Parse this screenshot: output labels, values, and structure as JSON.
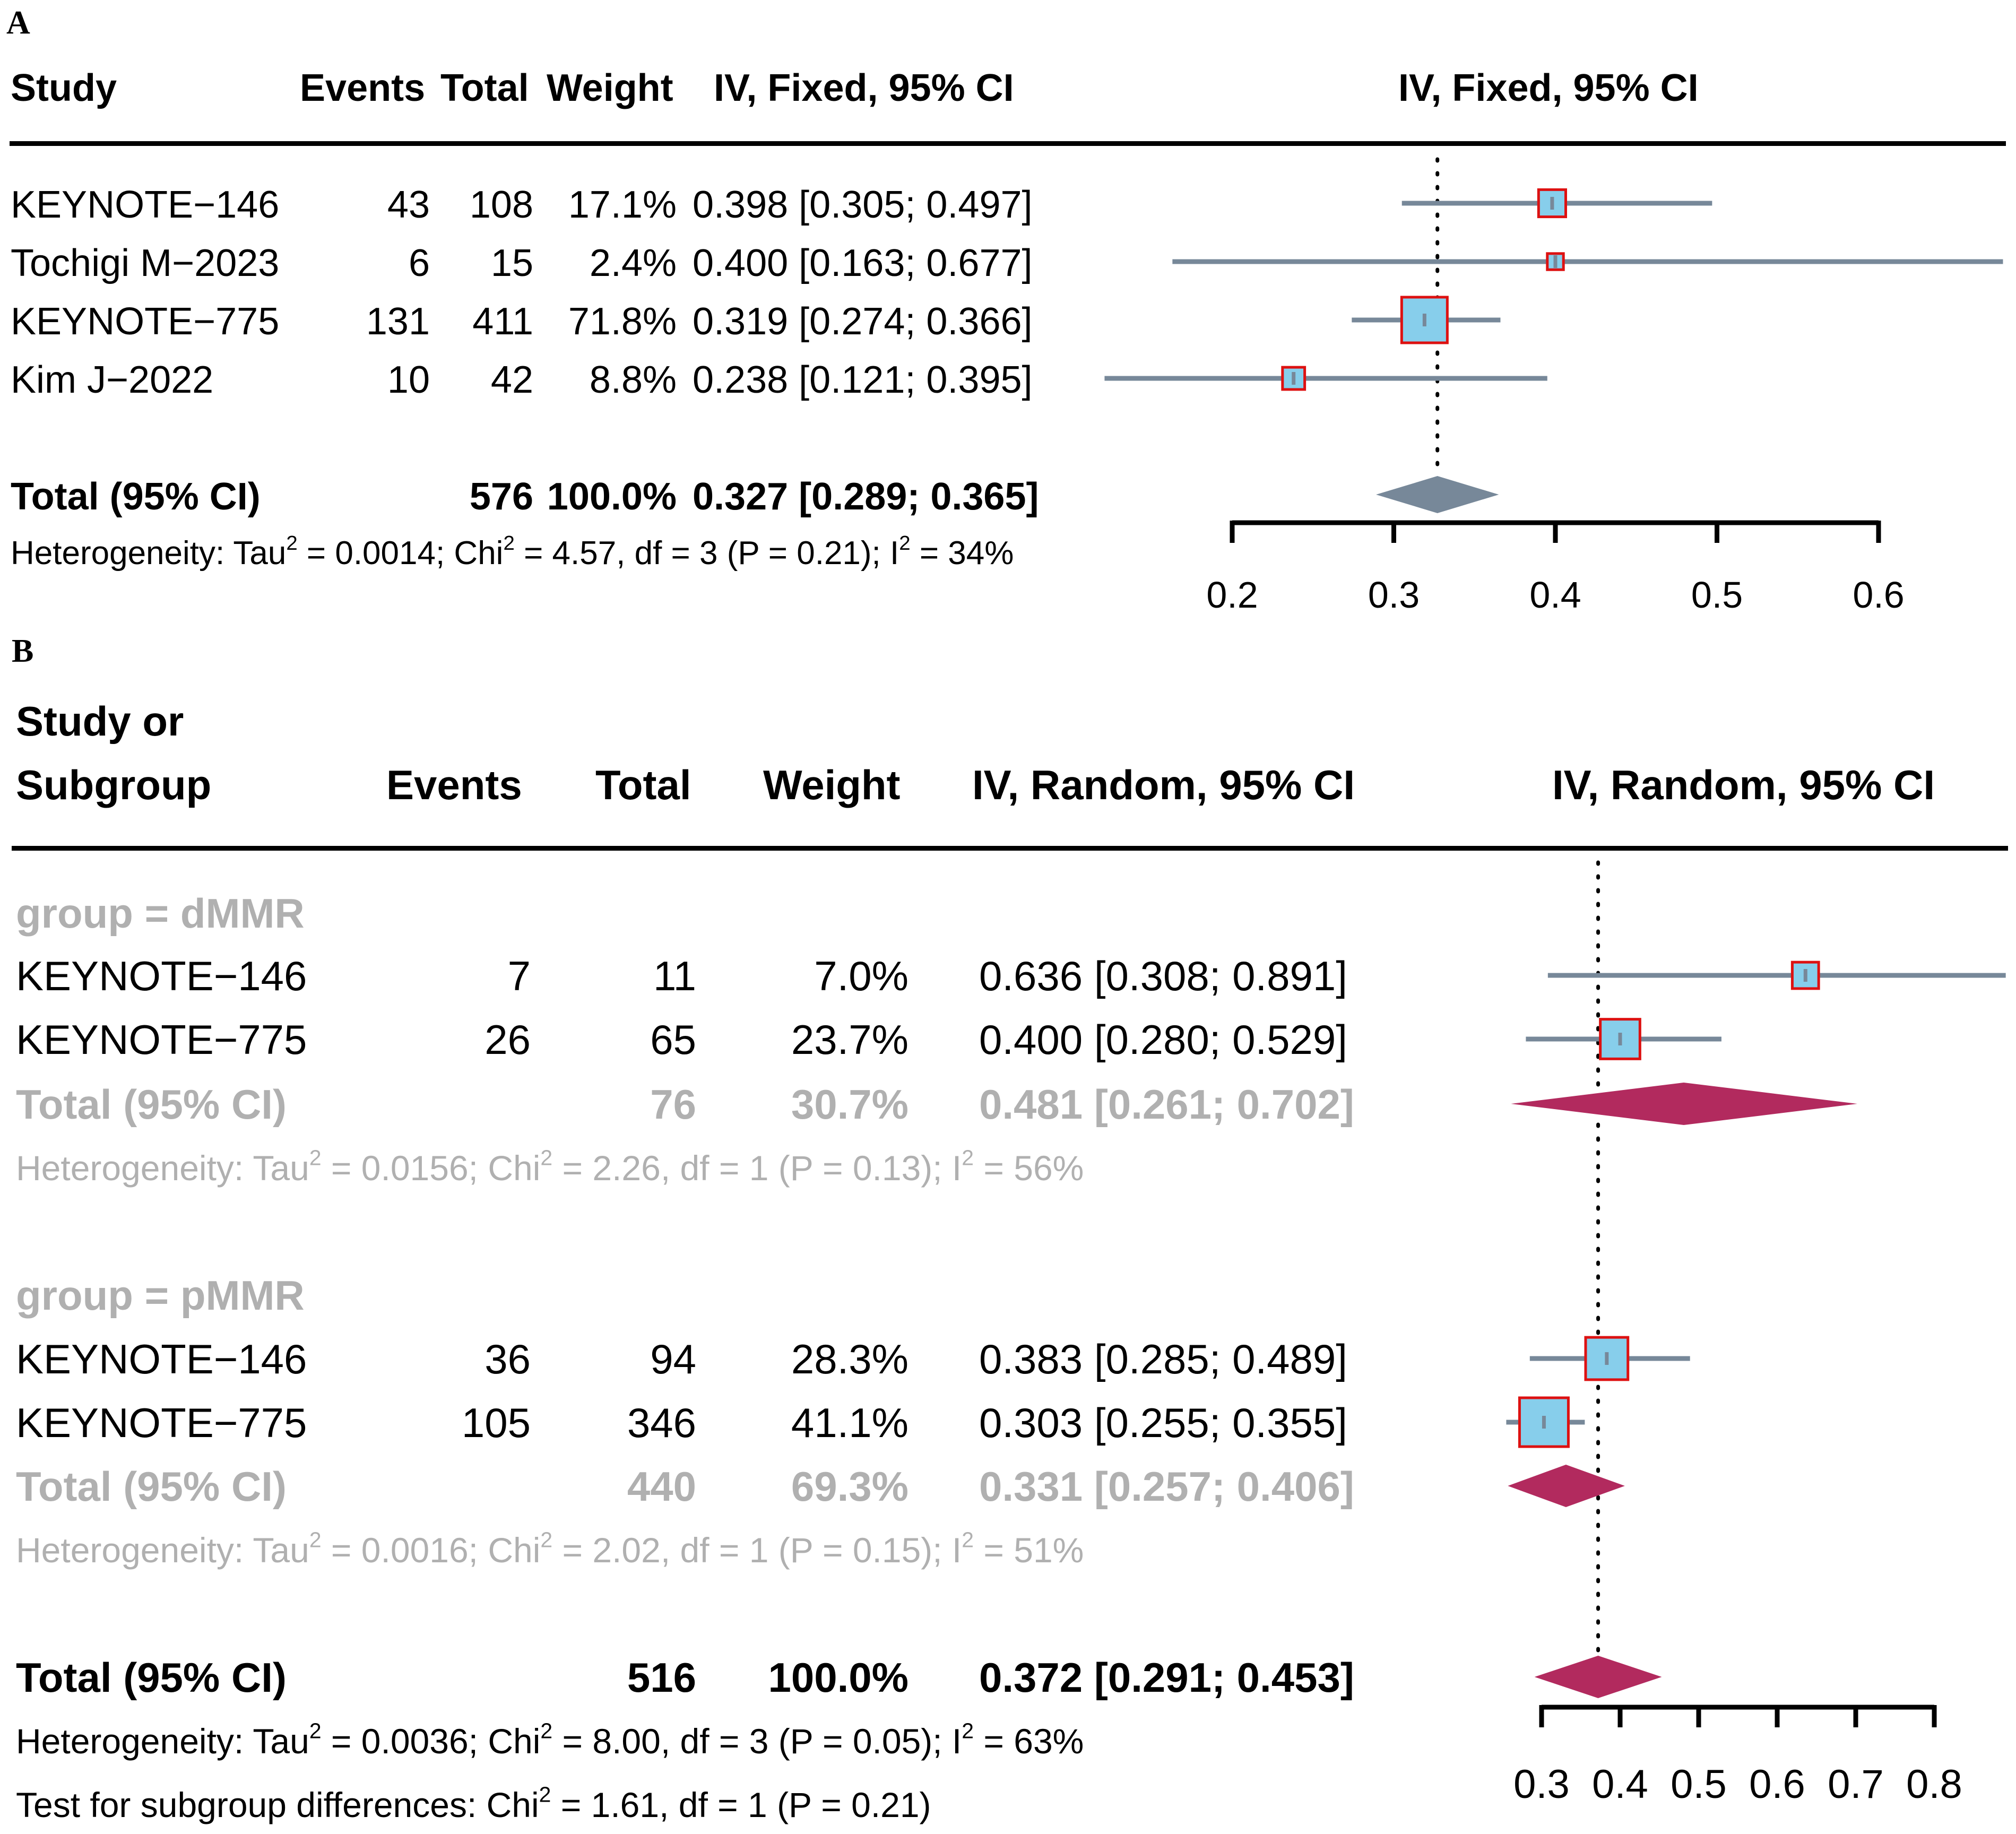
{
  "colors": {
    "line": "#778899",
    "box_fill": "#87ceeb",
    "box_stroke": "#dd1111",
    "diamond_fixed": "#778899",
    "diamond_random": "#b22a5e",
    "subgroup_text": "#b0b0b0"
  },
  "panelA": {
    "label": "A",
    "headers": {
      "study": "Study",
      "events": "Events",
      "total": "Total",
      "weight": "Weight",
      "ci": "IV, Fixed, 95% CI",
      "plot": "IV, Fixed, 95% CI"
    },
    "rows": [
      {
        "study": "KEYNOTE−146",
        "events": "43",
        "total": "108",
        "weight": "17.1%",
        "ci": "0.398 [0.305; 0.497]"
      },
      {
        "study": "Tochigi M−2023",
        "events": "6",
        "total": "15",
        "weight": "2.4%",
        "ci": "0.400 [0.163; 0.677]"
      },
      {
        "study": "KEYNOTE−775",
        "events": "131",
        "total": "411",
        "weight": "71.8%",
        "ci": "0.319 [0.274; 0.366]"
      },
      {
        "study": "Kim J−2022",
        "events": "10",
        "total": "42",
        "weight": "8.8%",
        "ci": "0.238 [0.121; 0.395]"
      }
    ],
    "total": {
      "label": "Total (95% CI)",
      "total": "576",
      "weight": "100.0%",
      "ci": "0.327 [0.289; 0.365]"
    },
    "heterogeneity": {
      "prefix": "Heterogeneity: Tau",
      "a": " = 0.0014; Chi",
      "b": " = 4.57, df = 3 (P = 0.21); I",
      "c": " = 34%",
      "sup": "2"
    }
  },
  "panelB": {
    "label": "B",
    "headers": {
      "study1": "Study or",
      "study2": "Subgroup",
      "events": "Events",
      "total": "Total",
      "weight": "Weight",
      "ci": "IV, Random, 95% CI",
      "plot": "IV, Random, 95% CI"
    },
    "groups": [
      {
        "name": "group = dMMR",
        "rows": [
          {
            "study": "KEYNOTE−146",
            "events": "7",
            "total": "11",
            "weight": "7.0%",
            "ci": "0.636 [0.308; 0.891]"
          },
          {
            "study": "KEYNOTE−775",
            "events": "26",
            "total": "65",
            "weight": "23.7%",
            "ci": "0.400 [0.280; 0.529]"
          }
        ],
        "total": {
          "label": "Total (95% CI)",
          "total": "76",
          "weight": "30.7%",
          "ci": "0.481 [0.261; 0.702]"
        },
        "heterogeneity": {
          "prefix": "Heterogeneity: Tau",
          "a": " = 0.0156; Chi",
          "b": " = 2.26, df = 1 (P = 0.13); I",
          "c": " = 56%",
          "sup": "2"
        }
      },
      {
        "name": "group = pMMR",
        "rows": [
          {
            "study": "KEYNOTE−146",
            "events": "36",
            "total": "94",
            "weight": "28.3%",
            "ci": "0.383 [0.285; 0.489]"
          },
          {
            "study": "KEYNOTE−775",
            "events": "105",
            "total": "346",
            "weight": "41.1%",
            "ci": "0.303 [0.255; 0.355]"
          }
        ],
        "total": {
          "label": "Total (95% CI)",
          "total": "440",
          "weight": "69.3%",
          "ci": "0.331 [0.257; 0.406]"
        },
        "heterogeneity": {
          "prefix": "Heterogeneity: Tau",
          "a": " = 0.0016; Chi",
          "b": " = 2.02, df = 1 (P = 0.15); I",
          "c": " = 51%",
          "sup": "2"
        }
      }
    ],
    "total": {
      "label": "Total (95% CI)",
      "total": "516",
      "weight": "100.0%",
      "ci": "0.372 [0.291; 0.453]"
    },
    "heterogeneity": {
      "prefix": "Heterogeneity: Tau",
      "a": " = 0.0036; Chi",
      "b": " = 8.00, df = 3 (P = 0.05); I",
      "c": " = 63%",
      "sup": "2"
    },
    "subgroup_test": {
      "prefix": "Test for subgroup differences: Chi",
      "a": " = 1.61, df = 1 (P = 0.21)",
      "sup": "2"
    }
  },
  "chart_data": [
    {
      "type": "forest",
      "title": "IV, Fixed, 95% CI",
      "xlim": [
        0.2,
        0.6
      ],
      "ticks": [
        0.2,
        0.3,
        0.4,
        0.5,
        0.6
      ],
      "tick_labels": [
        "0.2",
        "0.3",
        "0.4",
        "0.5",
        "0.6"
      ],
      "reference": 0.327,
      "studies": [
        {
          "name": "KEYNOTE−146",
          "est": 0.398,
          "lo": 0.305,
          "hi": 0.497,
          "weight": 17.1
        },
        {
          "name": "Tochigi M−2023",
          "est": 0.4,
          "lo": 0.163,
          "hi": 0.677,
          "weight": 2.4
        },
        {
          "name": "KEYNOTE−775",
          "est": 0.319,
          "lo": 0.274,
          "hi": 0.366,
          "weight": 71.8
        },
        {
          "name": "Kim J−2022",
          "est": 0.238,
          "lo": 0.121,
          "hi": 0.395,
          "weight": 8.8
        }
      ],
      "pooled": {
        "est": 0.327,
        "lo": 0.289,
        "hi": 0.365
      }
    },
    {
      "type": "forest",
      "title": "IV, Random, 95% CI",
      "xlim": [
        0.3,
        0.8
      ],
      "ticks": [
        0.3,
        0.4,
        0.5,
        0.6,
        0.7,
        0.8
      ],
      "tick_labels": [
        "0.3",
        "0.4",
        "0.5",
        "0.6",
        "0.7",
        "0.8"
      ],
      "reference": 0.372,
      "studies": [
        {
          "name": "KEYNOTE−146 (dMMR)",
          "est": 0.636,
          "lo": 0.308,
          "hi": 0.891,
          "weight": 7.0
        },
        {
          "name": "KEYNOTE−775 (dMMR)",
          "est": 0.4,
          "lo": 0.28,
          "hi": 0.529,
          "weight": 23.7
        },
        {
          "name": "KEYNOTE−146 (pMMR)",
          "est": 0.383,
          "lo": 0.285,
          "hi": 0.489,
          "weight": 28.3
        },
        {
          "name": "KEYNOTE−775 (pMMR)",
          "est": 0.303,
          "lo": 0.255,
          "hi": 0.355,
          "weight": 41.1
        }
      ],
      "subgroup_pooled": [
        {
          "name": "dMMR",
          "est": 0.481,
          "lo": 0.261,
          "hi": 0.702
        },
        {
          "name": "pMMR",
          "est": 0.331,
          "lo": 0.257,
          "hi": 0.406
        }
      ],
      "pooled": {
        "est": 0.372,
        "lo": 0.291,
        "hi": 0.453
      }
    }
  ]
}
